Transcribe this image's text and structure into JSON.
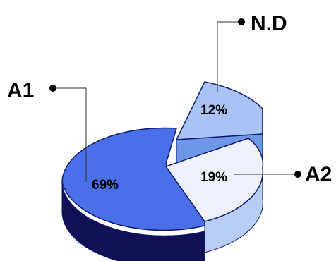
{
  "chart_data": {
    "type": "pie",
    "style": "3d-exploded",
    "categories": [
      "A1",
      "A2",
      "N.D"
    ],
    "values": [
      69,
      19,
      12
    ],
    "value_labels": [
      "69%",
      "19%",
      "12%"
    ],
    "colors": {
      "A1": "#4a6fe8",
      "A2": "#eef1fc",
      "N.D": "#a9c3f5",
      "outline": "#0d1b6e",
      "A1_side": "#101056",
      "A2_side": "#b7cdf4",
      "N.D_side": "#6f97e8"
    },
    "legend": "callouts"
  }
}
